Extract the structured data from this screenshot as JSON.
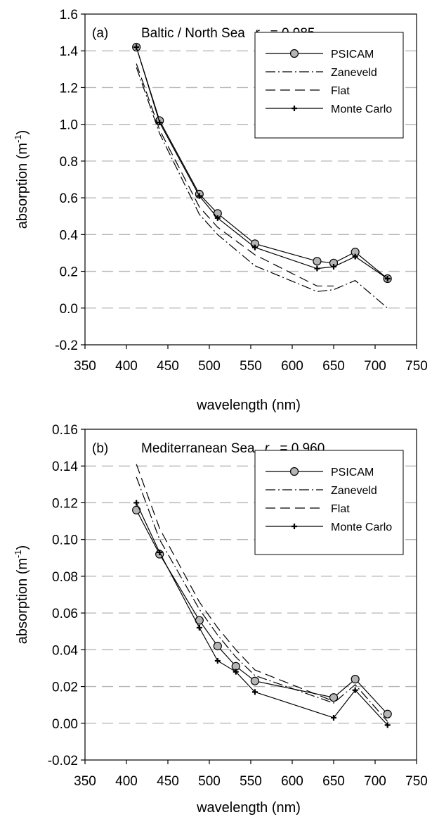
{
  "chart_data": [
    {
      "type": "line",
      "panel_label": "(a)",
      "title": "Baltic / North Sea",
      "rw_symbol": "r",
      "rw_subscript": "w",
      "rw_value": " = 0.985",
      "xlabel": "wavelength (nm)",
      "ylabel_main": "absorption (m",
      "ylabel_sup": "-1",
      "ylabel_end": ")",
      "xlim": [
        350,
        750
      ],
      "ylim": [
        -0.2,
        1.6
      ],
      "xticks": [
        "350",
        "400",
        "450",
        "500",
        "550",
        "600",
        "650",
        "700",
        "750"
      ],
      "yticks": [
        "-0.2",
        "0.0",
        "0.2",
        "0.4",
        "0.6",
        "0.8",
        "1.0",
        "1.2",
        "1.4",
        "1.6"
      ],
      "grid": "horizontal dashed",
      "legend_position": "top-right",
      "series": [
        {
          "name": "PSICAM",
          "style": "solid-circle",
          "x": [
            412,
            440,
            488,
            510,
            555,
            630,
            650,
            676,
            715
          ],
          "y": [
            1.42,
            1.02,
            0.62,
            0.515,
            0.35,
            0.255,
            0.245,
            0.305,
            0.16
          ]
        },
        {
          "name": "Zaneveld",
          "style": "dashdot",
          "x": [
            412,
            440,
            488,
            510,
            555,
            630,
            650,
            676,
            715
          ],
          "y": [
            1.31,
            0.95,
            0.51,
            0.4,
            0.23,
            0.09,
            0.1,
            0.15,
            0.0
          ]
        },
        {
          "name": "Flat",
          "style": "dashed",
          "x": [
            412,
            440,
            488,
            510,
            555,
            630,
            650
          ],
          "y": [
            1.33,
            0.97,
            0.55,
            0.44,
            0.29,
            0.12,
            0.12
          ]
        },
        {
          "name": "Monte Carlo",
          "style": "solid-plus",
          "x": [
            412,
            440,
            488,
            510,
            555,
            630,
            650,
            676,
            715
          ],
          "y": [
            1.42,
            1.01,
            0.61,
            0.49,
            0.33,
            0.215,
            0.225,
            0.28,
            0.16
          ]
        }
      ]
    },
    {
      "type": "line",
      "panel_label": "(b)",
      "title": "Mediterranean Sea",
      "rw_symbol": "r",
      "rw_subscript": "w",
      "rw_value": " = 0.960",
      "xlabel": "wavelength (nm)",
      "ylabel_main": "absorption (m",
      "ylabel_sup": "-1",
      "ylabel_end": ")",
      "xlim": [
        350,
        750
      ],
      "ylim": [
        -0.02,
        0.16
      ],
      "xticks": [
        "350",
        "400",
        "450",
        "500",
        "550",
        "600",
        "650",
        "700",
        "750"
      ],
      "yticks": [
        "-0.02",
        "0.00",
        "0.02",
        "0.04",
        "0.06",
        "0.08",
        "0.10",
        "0.12",
        "0.14",
        "0.16"
      ],
      "grid": "horizontal dashed",
      "legend_position": "top-right",
      "series": [
        {
          "name": "PSICAM",
          "style": "solid-circle",
          "x": [
            412,
            440,
            488,
            510,
            532,
            555,
            650,
            676,
            715
          ],
          "y": [
            0.116,
            0.092,
            0.056,
            0.042,
            0.031,
            0.023,
            0.014,
            0.024,
            0.005
          ]
        },
        {
          "name": "Zaneveld",
          "style": "dashdot",
          "x": [
            412,
            440,
            488,
            510,
            532,
            555,
            650,
            676,
            715
          ],
          "y": [
            0.134,
            0.1,
            0.062,
            0.048,
            0.036,
            0.026,
            0.011,
            0.021,
            0.001
          ]
        },
        {
          "name": "Flat",
          "style": "dashed",
          "x": [
            412,
            440,
            488,
            510,
            532,
            555,
            650
          ],
          "y": [
            0.141,
            0.106,
            0.066,
            0.052,
            0.04,
            0.029,
            0.012
          ]
        },
        {
          "name": "Monte Carlo",
          "style": "solid-plus",
          "x": [
            412,
            440,
            488,
            510,
            532,
            555,
            650,
            676,
            715
          ],
          "y": [
            0.12,
            0.093,
            0.052,
            0.034,
            0.028,
            0.017,
            0.003,
            0.018,
            -0.001
          ]
        }
      ]
    }
  ]
}
